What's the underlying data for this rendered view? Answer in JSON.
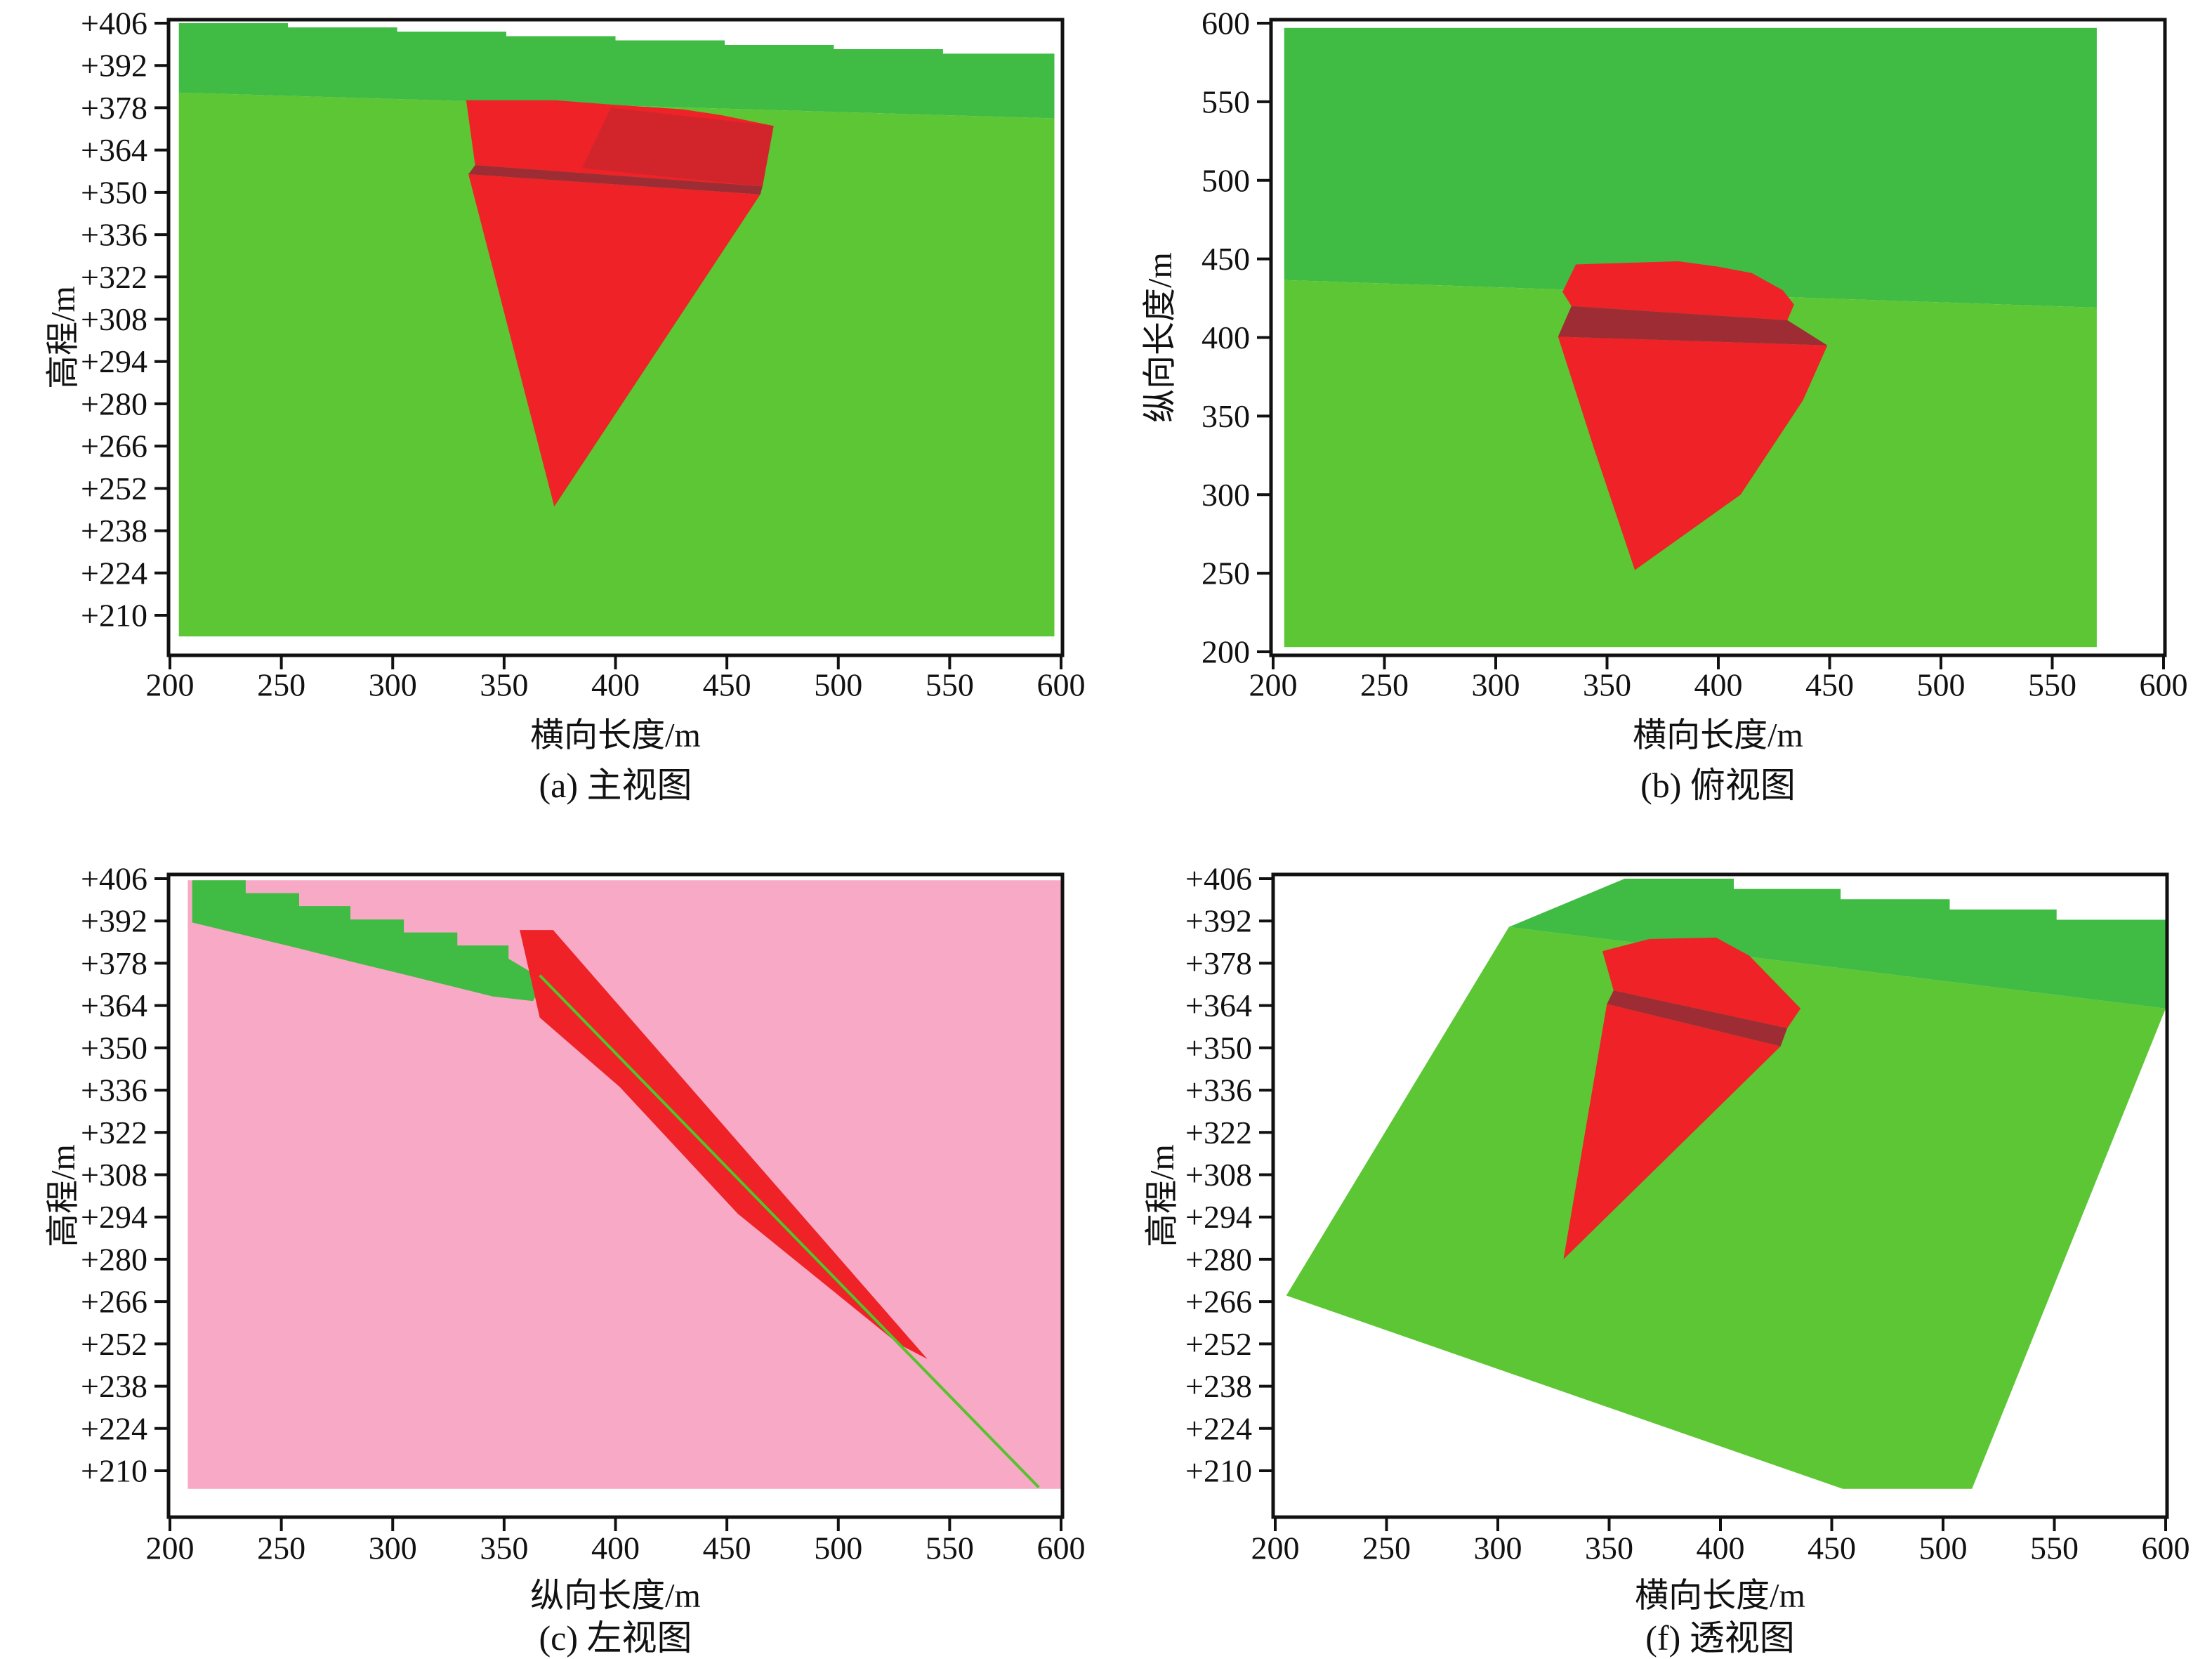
{
  "figure": {
    "description": "Four orthographic/perspective views of an open-pit mining block model",
    "colors": {
      "dark_green": "#40bb44",
      "light_green": "#5cc634",
      "red": "#ee2227",
      "dark_red": "#9e2c34",
      "pink": "#f8a9c5",
      "line_green": "#54c32c",
      "axis": "#111111"
    }
  },
  "chart_data": [
    {
      "id": "front-view",
      "type": "area",
      "caption": "(a) 主视图",
      "xlabel": "横向长度/m",
      "ylabel": "高程/m",
      "xlim": [
        200,
        600
      ],
      "xticks": [
        200,
        250,
        300,
        350,
        400,
        450,
        500,
        550,
        600
      ],
      "ytick_labels": [
        "+406",
        "+392",
        "+378",
        "+364",
        "+350",
        "+336",
        "+322",
        "+308",
        "+294",
        "+280",
        "+266",
        "+252",
        "+238",
        "+224",
        "+210"
      ],
      "ytick_values": [
        406,
        392,
        378,
        364,
        350,
        336,
        322,
        308,
        294,
        280,
        266,
        252,
        238,
        224,
        210
      ],
      "regions": [
        {
          "name": "lower-terrain",
          "color": "light_green",
          "poly": [
            [
              204,
              383
            ],
            [
              597,
              374.5
            ],
            [
              597,
              203
            ],
            [
              204,
              203
            ]
          ]
        },
        {
          "name": "upper-bench",
          "color": "dark_green",
          "poly": [
            [
              204,
              406
            ],
            [
              253,
              406
            ],
            [
              253,
              404.6
            ],
            [
              302,
              404.6
            ],
            [
              302,
              403.2
            ],
            [
              351,
              403.2
            ],
            [
              351,
              401.7
            ],
            [
              400,
              401.7
            ],
            [
              400,
              400.3
            ],
            [
              449,
              400.3
            ],
            [
              449,
              398.8
            ],
            [
              498,
              398.8
            ],
            [
              498,
              397.4
            ],
            [
              547,
              397.4
            ],
            [
              547,
              395.9
            ],
            [
              597,
              395.9
            ],
            [
              597,
              374.5
            ],
            [
              204,
              383
            ]
          ]
        },
        {
          "name": "pit-upper",
          "color": "red",
          "poly": [
            [
              333,
              380.5
            ],
            [
              373,
              380.5
            ],
            [
              399,
              379
            ],
            [
              430,
              377.5
            ],
            [
              448,
              375.5
            ],
            [
              471,
              372
            ],
            [
              466,
              352
            ],
            [
              337,
              359
            ]
          ]
        },
        {
          "name": "pit-upper-shade",
          "color": "dark_red",
          "opacity": 0.35,
          "poly": [
            [
              398,
              378
            ],
            [
              471,
              372
            ],
            [
              466,
              352
            ],
            [
              385,
              358
            ]
          ]
        },
        {
          "name": "bench-band",
          "color": "dark_red",
          "poly": [
            [
              337,
              359
            ],
            [
              466,
              352
            ],
            [
              465,
              349.3
            ],
            [
              334,
              356
            ]
          ]
        },
        {
          "name": "pit-lower",
          "color": "red",
          "poly": [
            [
              334,
              356
            ],
            [
              465,
              349.3
            ],
            [
              372.5,
              246
            ]
          ]
        }
      ],
      "lines": []
    },
    {
      "id": "top-view",
      "type": "area",
      "caption": "(b) 俯视图",
      "xlabel": "横向长度/m",
      "ylabel": "纵向长度/m",
      "xlim": [
        200,
        600
      ],
      "xticks": [
        200,
        250,
        300,
        350,
        400,
        450,
        500,
        550,
        600
      ],
      "ytick_labels": [
        "600",
        "550",
        "500",
        "450",
        "400",
        "350",
        "300",
        "250",
        "200"
      ],
      "ytick_values": [
        600,
        550,
        500,
        450,
        400,
        350,
        300,
        250,
        200
      ],
      "regions": [
        {
          "name": "far-terrain",
          "color": "dark_green",
          "poly": [
            [
              205,
              597
            ],
            [
              570,
              597
            ],
            [
              570,
              419
            ],
            [
              205,
              436.5
            ]
          ]
        },
        {
          "name": "near-terrain",
          "color": "light_green",
          "poly": [
            [
              205,
              436.5
            ],
            [
              570,
              419
            ],
            [
              570,
              203
            ],
            [
              205,
              203
            ]
          ]
        },
        {
          "name": "pit-upper",
          "color": "red",
          "poly": [
            [
              330,
              429
            ],
            [
              336,
              446.5
            ],
            [
              382,
              448.5
            ],
            [
              400,
              445
            ],
            [
              415,
              441
            ],
            [
              429,
              430
            ],
            [
              434,
              421
            ],
            [
              431,
              411
            ],
            [
              334,
              420
            ]
          ]
        },
        {
          "name": "bench-band",
          "color": "dark_red",
          "poly": [
            [
              334,
              420
            ],
            [
              431,
              411
            ],
            [
              449,
              395
            ],
            [
              328,
              400.5
            ]
          ]
        },
        {
          "name": "pit-lower",
          "color": "red",
          "poly": [
            [
              328,
              400.5
            ],
            [
              449,
              395
            ],
            [
              438,
              360
            ],
            [
              410,
              300
            ],
            [
              362.5,
              252
            ],
            [
              344,
              330
            ]
          ]
        }
      ],
      "lines": []
    },
    {
      "id": "left-view",
      "type": "area",
      "caption": "(c) 左视图",
      "xlabel": "纵向长度/m",
      "ylabel": "高程/m",
      "xlim": [
        200,
        600
      ],
      "xticks": [
        200,
        250,
        300,
        350,
        400,
        450,
        500,
        550,
        600
      ],
      "ytick_labels": [
        "+406",
        "+392",
        "+378",
        "+364",
        "+350",
        "+336",
        "+322",
        "+308",
        "+294",
        "+280",
        "+266",
        "+252",
        "+238",
        "+224",
        "+210"
      ],
      "ytick_values": [
        406,
        392,
        378,
        364,
        350,
        336,
        322,
        308,
        294,
        280,
        266,
        252,
        238,
        224,
        210
      ],
      "regions": [
        {
          "name": "rock-mass",
          "color": "pink",
          "poly": [
            [
              208,
              405.5
            ],
            [
              600,
              405.5
            ],
            [
              600,
              204
            ],
            [
              208,
              204
            ]
          ]
        },
        {
          "name": "surface-band",
          "color": "dark_green",
          "poly": [
            [
              210,
              405.5
            ],
            [
              234,
              405.5
            ],
            [
              234,
              401.2
            ],
            [
              258,
              401.2
            ],
            [
              258,
              396.9
            ],
            [
              281,
              396.9
            ],
            [
              281,
              392.5
            ],
            [
              305,
              392.5
            ],
            [
              305,
              388.2
            ],
            [
              329,
              388.2
            ],
            [
              329,
              383.9
            ],
            [
              352,
              383.9
            ],
            [
              352,
              379.5
            ],
            [
              368,
              372.5
            ],
            [
              363,
              365.5
            ],
            [
              345,
              367
            ],
            [
              305,
              374.3
            ],
            [
              281,
              378.6
            ],
            [
              258,
              382.9
            ],
            [
              234,
              387.2
            ],
            [
              210,
              391.5
            ]
          ]
        },
        {
          "name": "pit-profile",
          "color": "red",
          "poly": [
            [
              357,
              389
            ],
            [
              372,
              389
            ],
            [
              540,
              247
            ],
            [
              527,
              252
            ],
            [
              455,
              295
            ],
            [
              402,
              337
            ],
            [
              366,
              360
            ]
          ]
        }
      ],
      "lines": [
        {
          "name": "slope-line",
          "color": "line_green",
          "px": 4,
          "pts": [
            [
              366,
              374
            ],
            [
              590,
              204.5
            ]
          ]
        }
      ]
    },
    {
      "id": "perspective-view",
      "type": "area",
      "caption": "(f) 透视图",
      "xlabel": "横向长度/m",
      "ylabel": "高程/m",
      "xlim": [
        200,
        600
      ],
      "xticks": [
        200,
        250,
        300,
        350,
        400,
        450,
        500,
        550,
        600
      ],
      "ytick_labels": [
        "+406",
        "+392",
        "+378",
        "+364",
        "+350",
        "+336",
        "+322",
        "+308",
        "+294",
        "+280",
        "+266",
        "+252",
        "+238",
        "+224",
        "+210"
      ],
      "ytick_values": [
        406,
        392,
        378,
        364,
        350,
        336,
        322,
        308,
        294,
        280,
        266,
        252,
        238,
        224,
        210
      ],
      "regions": [
        {
          "name": "terrain-face",
          "color": "light_green",
          "poly": [
            [
              305,
              390
            ],
            [
              600,
              363
            ],
            [
              513,
              204
            ],
            [
              455,
              204
            ],
            [
              205,
              268
            ]
          ]
        },
        {
          "name": "crest-band",
          "color": "dark_green",
          "poly": [
            [
              305,
              390
            ],
            [
              357,
              406
            ],
            [
              406,
              406
            ],
            [
              406,
              402.6
            ],
            [
              454,
              402.6
            ],
            [
              454,
              399.2
            ],
            [
              503,
              399.2
            ],
            [
              503,
              395.8
            ],
            [
              551,
              395.8
            ],
            [
              551,
              392.4
            ],
            [
              600,
              392.4
            ],
            [
              600,
              363
            ]
          ]
        },
        {
          "name": "pit-upper",
          "color": "red",
          "poly": [
            [
              347,
              382
            ],
            [
              368,
              386
            ],
            [
              398,
              386.5
            ],
            [
              413,
              380.5
            ],
            [
              436,
              363
            ],
            [
              430,
              356.5
            ],
            [
              352,
              369
            ]
          ]
        },
        {
          "name": "bench-band",
          "color": "dark_red",
          "poly": [
            [
              352,
              369
            ],
            [
              430,
              356.5
            ],
            [
              427,
              350.5
            ],
            [
              349,
              364.5
            ]
          ]
        },
        {
          "name": "pit-lower",
          "color": "red",
          "poly": [
            [
              349,
              364.5
            ],
            [
              427,
              350.5
            ],
            [
              329.5,
              280
            ]
          ]
        }
      ],
      "lines": []
    }
  ]
}
